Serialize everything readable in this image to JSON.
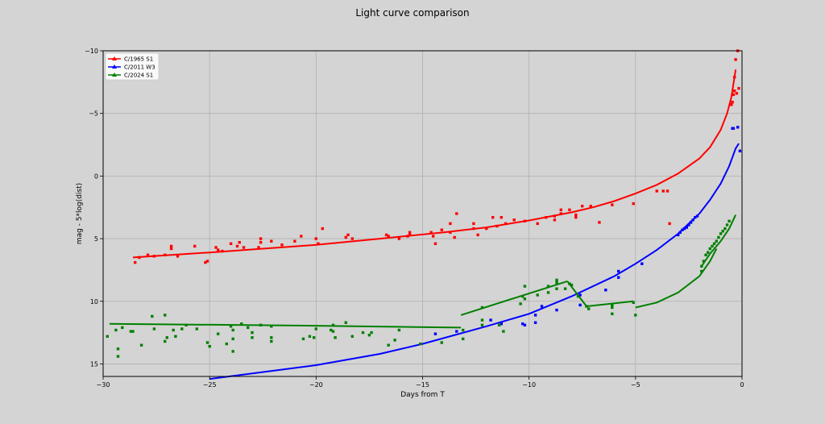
{
  "chart_data": {
    "type": "scatter",
    "title": "Light curve comparison",
    "xlabel": "Days from T",
    "ylabel": "mag - 5*log(dist)",
    "xlim": [
      -30,
      0
    ],
    "ylim": [
      16,
      -10
    ],
    "inverted_y": true,
    "grid": true,
    "legend_position": "top-left",
    "x_ticks": [
      -30,
      -25,
      -20,
      -15,
      -10,
      -5,
      0
    ],
    "y_ticks": [
      -10,
      -5,
      0,
      5,
      10,
      15
    ],
    "x_tick_labels": [
      "−30",
      "−25",
      "−20",
      "−15",
      "−10",
      "−5",
      "0"
    ],
    "y_tick_labels": [
      "−10",
      "−5",
      "0",
      "5",
      "10",
      "15"
    ],
    "series": [
      {
        "name": "C/1965 S1",
        "color": "#ff0000",
        "points": [
          [
            -28.5,
            6.9
          ],
          [
            -28.3,
            6.5
          ],
          [
            -27.9,
            6.3
          ],
          [
            -27.6,
            6.4
          ],
          [
            -27.1,
            6.3
          ],
          [
            -26.8,
            5.6
          ],
          [
            -26.8,
            5.8
          ],
          [
            -26.5,
            6.4
          ],
          [
            -25.7,
            5.6
          ],
          [
            -25.2,
            6.9
          ],
          [
            -25.1,
            6.8
          ],
          [
            -24.7,
            5.7
          ],
          [
            -24.6,
            5.9
          ],
          [
            -24.4,
            6.0
          ],
          [
            -24.0,
            5.4
          ],
          [
            -23.7,
            5.6
          ],
          [
            -23.6,
            5.3
          ],
          [
            -23.4,
            5.7
          ],
          [
            -22.7,
            5.7
          ],
          [
            -22.6,
            5.3
          ],
          [
            -22.6,
            5.0
          ],
          [
            -22.1,
            5.2
          ],
          [
            -21.6,
            5.5
          ],
          [
            -21.0,
            5.2
          ],
          [
            -20.7,
            4.8
          ],
          [
            -20.0,
            5.0
          ],
          [
            -19.9,
            5.4
          ],
          [
            -19.7,
            4.2
          ],
          [
            -18.6,
            4.9
          ],
          [
            -18.5,
            4.7
          ],
          [
            -18.3,
            5.0
          ],
          [
            -16.7,
            4.7
          ],
          [
            -16.6,
            4.8
          ],
          [
            -16.1,
            5.0
          ],
          [
            -15.7,
            4.8
          ],
          [
            -15.6,
            4.5
          ],
          [
            -15.6,
            4.7
          ],
          [
            -14.6,
            4.5
          ],
          [
            -14.5,
            4.8
          ],
          [
            -14.4,
            5.4
          ],
          [
            -14.1,
            4.3
          ],
          [
            -13.7,
            4.5
          ],
          [
            -13.7,
            3.8
          ],
          [
            -13.5,
            4.9
          ],
          [
            -13.4,
            3.0
          ],
          [
            -12.6,
            4.2
          ],
          [
            -12.6,
            3.8
          ],
          [
            -12.4,
            4.7
          ],
          [
            -12.0,
            4.2
          ],
          [
            -11.7,
            3.3
          ],
          [
            -11.5,
            4.0
          ],
          [
            -11.3,
            3.3
          ],
          [
            -11.1,
            3.8
          ],
          [
            -10.7,
            3.5
          ],
          [
            -10.2,
            3.6
          ],
          [
            -9.6,
            3.8
          ],
          [
            -9.2,
            3.3
          ],
          [
            -8.8,
            3.5
          ],
          [
            -8.8,
            3.2
          ],
          [
            -8.5,
            2.7
          ],
          [
            -8.5,
            3.0
          ],
          [
            -8.1,
            2.7
          ],
          [
            -7.8,
            3.1
          ],
          [
            -7.8,
            3.3
          ],
          [
            -7.5,
            2.4
          ],
          [
            -7.1,
            2.4
          ],
          [
            -6.7,
            3.7
          ],
          [
            -6.1,
            2.3
          ],
          [
            -5.1,
            2.2
          ],
          [
            -4.0,
            1.2
          ],
          [
            -3.7,
            1.2
          ],
          [
            -3.5,
            1.2
          ],
          [
            -3.4,
            3.8
          ],
          [
            -0.5,
            -5.7
          ],
          [
            -0.45,
            -5.9
          ],
          [
            -0.4,
            -6.5
          ],
          [
            -0.35,
            -6.8
          ],
          [
            -0.35,
            -7.9
          ],
          [
            -0.3,
            -9.3
          ],
          [
            -0.25,
            -6.6
          ],
          [
            -0.2,
            -10.0
          ],
          [
            -0.15,
            -7.0
          ]
        ],
        "fit": [
          [
            -28.6,
            6.5
          ],
          [
            -25,
            6.1
          ],
          [
            -20,
            5.5
          ],
          [
            -17,
            5.0
          ],
          [
            -14,
            4.5
          ],
          [
            -12,
            4.1
          ],
          [
            -10,
            3.55
          ],
          [
            -8,
            2.9
          ],
          [
            -7,
            2.5
          ],
          [
            -6,
            2.0
          ],
          [
            -5,
            1.4
          ],
          [
            -4,
            0.7
          ],
          [
            -3,
            -0.2
          ],
          [
            -2,
            -1.4
          ],
          [
            -1.5,
            -2.3
          ],
          [
            -1,
            -3.7
          ],
          [
            -0.7,
            -5.0
          ],
          [
            -0.5,
            -6.3
          ],
          [
            -0.3,
            -8.5
          ]
        ]
      },
      {
        "name": "C/2011 W3",
        "color": "#0000ff",
        "points": [
          [
            -14.4,
            12.6
          ],
          [
            -13.4,
            12.4
          ],
          [
            -11.8,
            11.5
          ],
          [
            -11.3,
            11.8
          ],
          [
            -10.3,
            11.8
          ],
          [
            -10.2,
            11.9
          ],
          [
            -9.7,
            11.7
          ],
          [
            -9.7,
            11.1
          ],
          [
            -9.4,
            10.4
          ],
          [
            -8.7,
            10.7
          ],
          [
            -7.6,
            10.3
          ],
          [
            -7.6,
            9.5
          ],
          [
            -6.4,
            9.1
          ],
          [
            -5.8,
            7.6
          ],
          [
            -5.8,
            8.1
          ],
          [
            -4.7,
            7.0
          ],
          [
            -3.0,
            4.7
          ],
          [
            -2.9,
            4.5
          ],
          [
            -2.8,
            4.3
          ],
          [
            -2.7,
            4.2
          ],
          [
            -2.6,
            4.1
          ],
          [
            -2.5,
            3.9
          ],
          [
            -2.4,
            3.7
          ],
          [
            -2.3,
            3.5
          ],
          [
            -2.2,
            3.3
          ],
          [
            -2.1,
            3.2
          ],
          [
            -0.45,
            -3.8
          ],
          [
            -0.4,
            -3.8
          ],
          [
            -0.2,
            -3.9
          ],
          [
            -0.1,
            -2.0
          ]
        ],
        "fit": [
          [
            -25,
            16.2
          ],
          [
            -20,
            15.1
          ],
          [
            -17,
            14.2
          ],
          [
            -15,
            13.4
          ],
          [
            -12,
            12.0
          ],
          [
            -10,
            11.0
          ],
          [
            -8,
            9.6
          ],
          [
            -6,
            8.0
          ],
          [
            -5,
            7.0
          ],
          [
            -4,
            5.9
          ],
          [
            -3,
            4.6
          ],
          [
            -2,
            3.0
          ],
          [
            -1.5,
            1.9
          ],
          [
            -1,
            0.6
          ],
          [
            -0.6,
            -0.8
          ],
          [
            -0.3,
            -2.2
          ],
          [
            -0.15,
            -2.6
          ]
        ]
      },
      {
        "name": "C/2024 S1",
        "color": "#008000",
        "points": [
          [
            -29.8,
            12.8
          ],
          [
            -29.4,
            12.3
          ],
          [
            -29.3,
            14.4
          ],
          [
            -29.3,
            13.8
          ],
          [
            -29.1,
            12.1
          ],
          [
            -28.7,
            12.4
          ],
          [
            -28.6,
            12.4
          ],
          [
            -28.2,
            13.5
          ],
          [
            -27.7,
            11.2
          ],
          [
            -27.6,
            12.2
          ],
          [
            -27.1,
            11.1
          ],
          [
            -27.0,
            12.9
          ],
          [
            -27.1,
            13.2
          ],
          [
            -26.7,
            12.3
          ],
          [
            -26.6,
            12.8
          ],
          [
            -26.3,
            12.2
          ],
          [
            -26.1,
            11.9
          ],
          [
            -25.6,
            12.2
          ],
          [
            -25.1,
            13.3
          ],
          [
            -25.0,
            13.6
          ],
          [
            -24.6,
            12.6
          ],
          [
            -24.2,
            13.4
          ],
          [
            -24.0,
            12.0
          ],
          [
            -23.9,
            12.3
          ],
          [
            -23.9,
            13.0
          ],
          [
            -23.9,
            14.0
          ],
          [
            -23.5,
            11.8
          ],
          [
            -23.2,
            12.1
          ],
          [
            -23.0,
            12.5
          ],
          [
            -23.0,
            12.9
          ],
          [
            -22.6,
            11.9
          ],
          [
            -22.1,
            12.0
          ],
          [
            -22.1,
            12.9
          ],
          [
            -22.1,
            13.2
          ],
          [
            -20.6,
            13.0
          ],
          [
            -20.3,
            12.8
          ],
          [
            -20.1,
            12.9
          ],
          [
            -20.0,
            12.2
          ],
          [
            -19.3,
            12.3
          ],
          [
            -19.2,
            12.4
          ],
          [
            -19.1,
            12.9
          ],
          [
            -19.2,
            11.9
          ],
          [
            -18.6,
            11.7
          ],
          [
            -18.3,
            12.8
          ],
          [
            -17.8,
            12.5
          ],
          [
            -17.5,
            12.7
          ],
          [
            -17.4,
            12.5
          ],
          [
            -16.6,
            13.5
          ],
          [
            -16.3,
            13.1
          ],
          [
            -16.1,
            12.3
          ],
          [
            -15.1,
            13.4
          ],
          [
            -14.1,
            13.3
          ],
          [
            -13.1,
            12.3
          ],
          [
            -13.1,
            13.0
          ],
          [
            -12.2,
            10.5
          ],
          [
            -12.2,
            11.5
          ],
          [
            -12.2,
            11.9
          ],
          [
            -11.4,
            11.9
          ],
          [
            -11.2,
            12.4
          ],
          [
            -10.4,
            10.2
          ],
          [
            -10.3,
            9.6
          ],
          [
            -10.2,
            9.8
          ],
          [
            -10.2,
            8.8
          ],
          [
            -9.6,
            9.5
          ],
          [
            -9.1,
            9.3
          ],
          [
            -9.1,
            8.8
          ],
          [
            -8.7,
            8.3
          ],
          [
            -8.7,
            8.5
          ],
          [
            -8.7,
            9.0
          ],
          [
            -8.3,
            9.0
          ],
          [
            -8.1,
            8.6
          ],
          [
            -8.0,
            8.7
          ],
          [
            -7.7,
            9.6
          ],
          [
            -7.3,
            10.4
          ],
          [
            -7.2,
            10.6
          ],
          [
            -6.1,
            10.3
          ],
          [
            -6.1,
            10.5
          ],
          [
            -6.1,
            11.0
          ],
          [
            -5.1,
            10.1
          ],
          [
            -5.0,
            11.1
          ],
          [
            -1.9,
            7.2
          ],
          [
            -1.9,
            7.6
          ],
          [
            -1.8,
            6.8
          ],
          [
            -1.7,
            6.3
          ],
          [
            -1.6,
            6.1
          ],
          [
            -1.5,
            5.8
          ],
          [
            -1.4,
            5.6
          ],
          [
            -1.3,
            5.4
          ],
          [
            -1.2,
            5.2
          ],
          [
            -1.1,
            4.9
          ],
          [
            -1.0,
            4.6
          ],
          [
            -0.9,
            4.4
          ],
          [
            -0.8,
            4.2
          ],
          [
            -0.7,
            3.9
          ],
          [
            -0.6,
            3.6
          ]
        ],
        "fit_segments": [
          [
            [
              -29.7,
              11.8
            ],
            [
              -20,
              11.95
            ],
            [
              -13.2,
              12.1
            ]
          ],
          [
            [
              -13.2,
              11.1
            ],
            [
              -8.2,
              8.4
            ]
          ],
          [
            [
              -8.2,
              8.4
            ],
            [
              -7.3,
              10.4
            ]
          ],
          [
            [
              -7.3,
              10.4
            ],
            [
              -5.1,
              10.0
            ]
          ],
          [
            [
              -5.0,
              10.5
            ],
            [
              -4.0,
              10.1
            ],
            [
              -3.0,
              9.3
            ],
            [
              -2.0,
              8.0
            ],
            [
              -1.5,
              6.8
            ],
            [
              -1.2,
              5.8
            ]
          ],
          [
            [
              -1.9,
              7.2
            ],
            [
              -1.5,
              6.2
            ],
            [
              -1.0,
              5.2
            ],
            [
              -0.6,
              4.2
            ],
            [
              -0.3,
              3.1
            ]
          ]
        ]
      }
    ]
  }
}
